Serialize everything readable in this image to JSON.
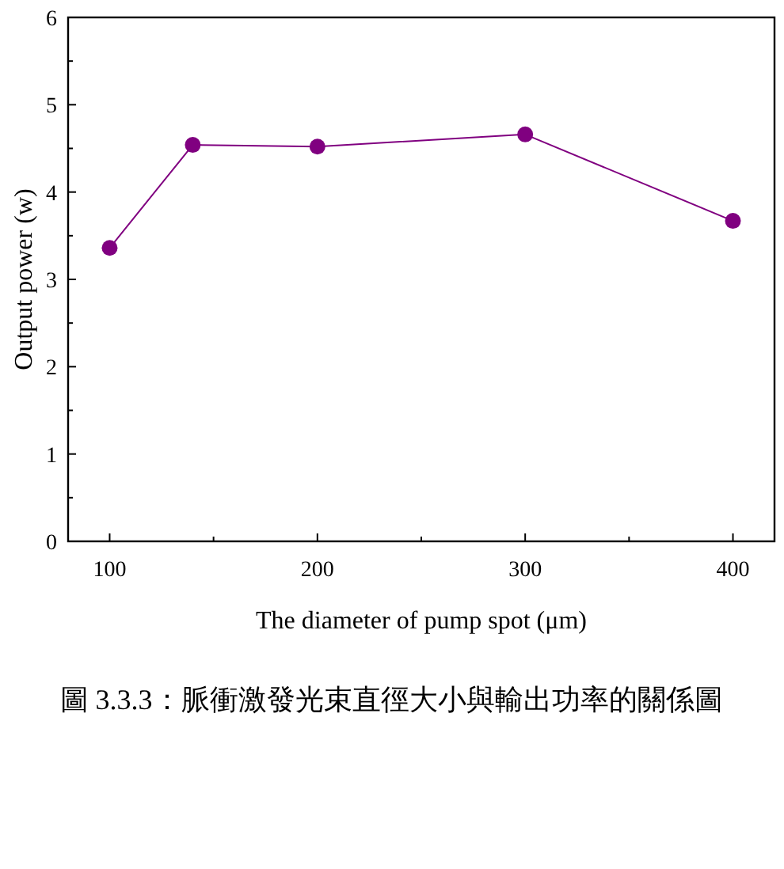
{
  "chart_data": {
    "type": "line",
    "xlabel": "The diameter of pump spot (μm)",
    "ylabel": "Output power (w)",
    "annotations": [
      "圖 3.3.3：脈衝激發光束直徑大小與輸出功率的關係圖"
    ],
    "x": [
      100,
      140,
      200,
      300,
      400
    ],
    "series": [
      {
        "color": "#800080",
        "values": [
          3.36,
          4.54,
          4.52,
          4.66,
          3.67
        ]
      }
    ],
    "xlim": [
      80,
      420
    ],
    "ylim": [
      0,
      6
    ],
    "xticks": [
      100,
      200,
      300,
      400
    ],
    "yticks": [
      0,
      1,
      2,
      3,
      4,
      5,
      6
    ],
    "marker": "circle",
    "line_style": "solid",
    "grid": false
  }
}
